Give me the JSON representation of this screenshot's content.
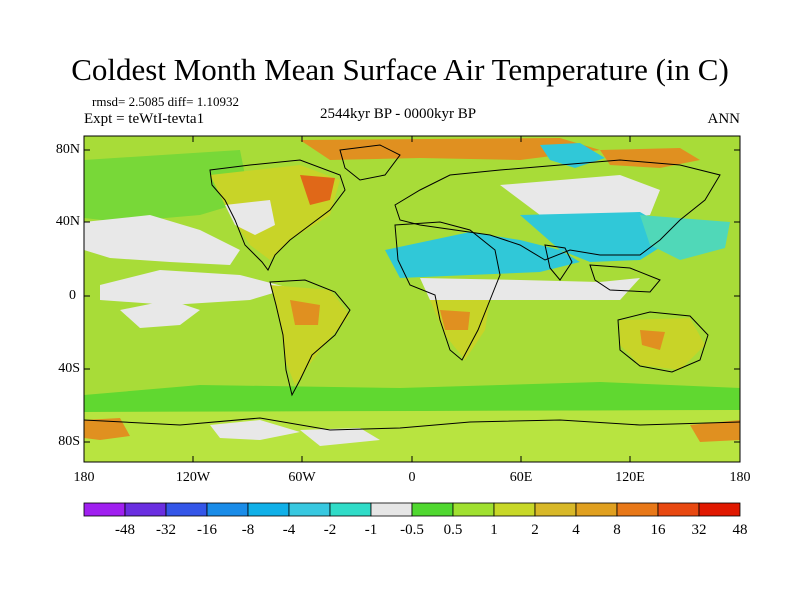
{
  "title": "Coldest Month Mean Surface Air Temperature (in C)",
  "stats": "rmsd= 2.5085 diff= 1.10932",
  "experiment": "Expt = teWtI-tevta1",
  "period": "2544kyr BP - 0000kyr BP",
  "season": "ANN",
  "y_axis_labels": [
    "80N",
    "40N",
    "0",
    "40S",
    "80S"
  ],
  "x_axis_labels": [
    "180",
    "120W",
    "60W",
    "0",
    "60E",
    "120E",
    "180"
  ],
  "colorbar": {
    "colors": [
      "#a020f0",
      "#6a2ee0",
      "#3456e8",
      "#1a8ce8",
      "#10b0e8",
      "#38c8e0",
      "#30dcc8",
      "#e6e6e6",
      "#50d830",
      "#a0e030",
      "#c8d828",
      "#d8b828",
      "#e0a020",
      "#e87818",
      "#e84810",
      "#e01800"
    ],
    "labels": [
      "-48",
      "-32",
      "-16",
      "-8",
      "-4",
      "-2",
      "-1",
      "-0.5",
      "0.5",
      "1",
      "2",
      "4",
      "8",
      "16",
      "32",
      "48"
    ]
  },
  "map_colors": {
    "background": "#a8dc38",
    "light_green": "#b8e440",
    "bright_green": "#60d830",
    "yellow_green": "#c8d428",
    "orange": "#e09020",
    "red_orange": "#e06818",
    "neutral": "#e8e8e8",
    "cyan": "#30c8d8",
    "teal": "#50d8b8"
  }
}
